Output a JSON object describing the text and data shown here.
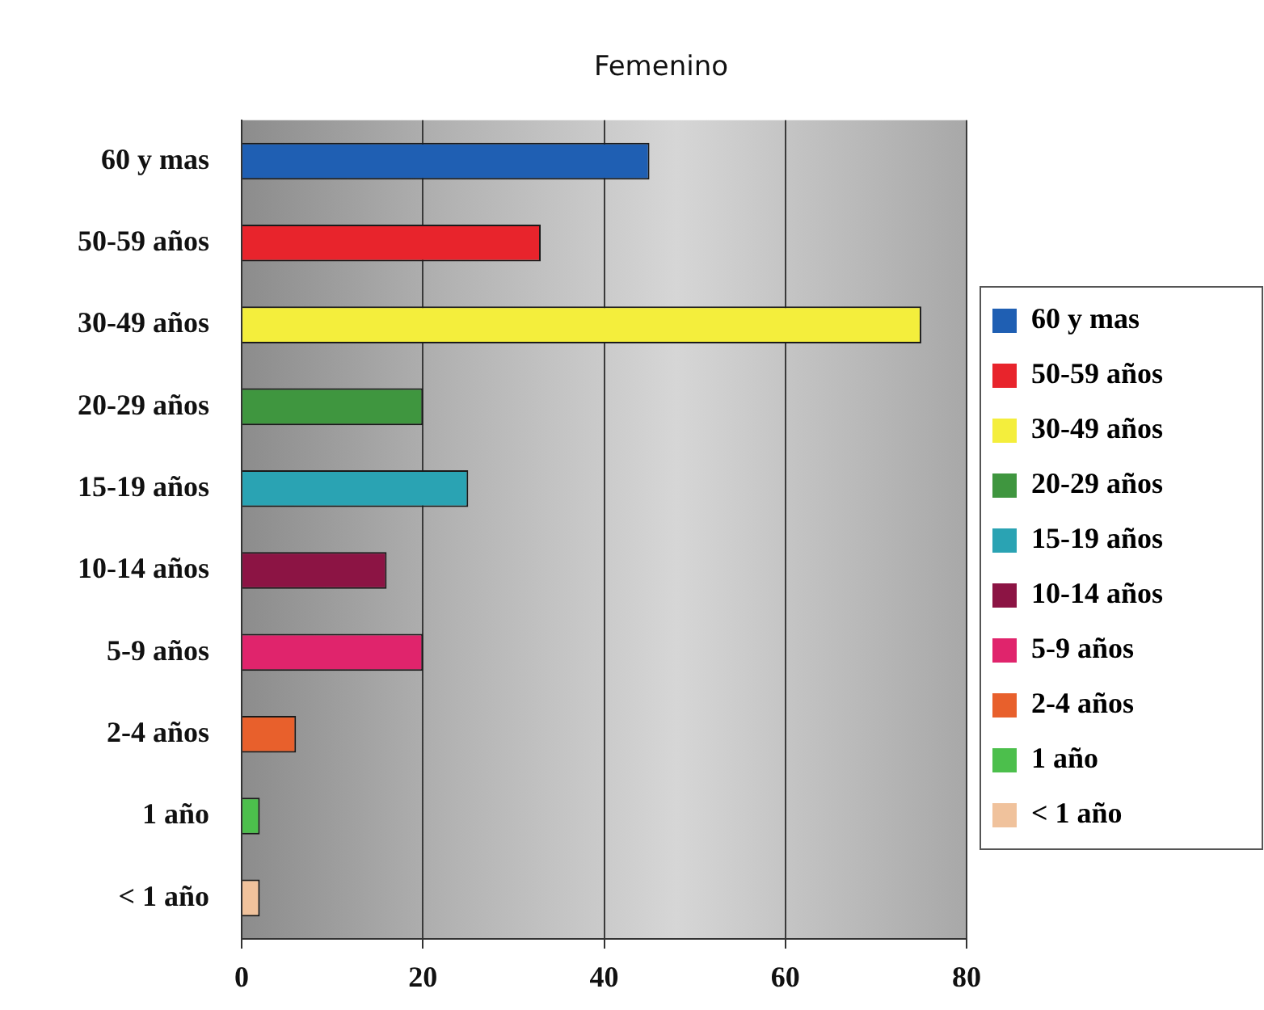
{
  "chart_data": {
    "type": "bar",
    "title": "Femenino",
    "orientation": "horizontal",
    "categories": [
      "60 y mas",
      "50-59 años",
      "30-49 años",
      "20-29 años",
      "15-19 años",
      "10-14 años",
      "5-9 años",
      "2-4 años",
      "1 año",
      "< 1 año"
    ],
    "series": [
      {
        "name": "60 y mas",
        "color": "#1f5fb3",
        "values": [
          45,
          null,
          null,
          null,
          null,
          null,
          null,
          null,
          null,
          null
        ]
      },
      {
        "name": "50-59 años",
        "color": "#e8242c",
        "values": [
          null,
          33,
          null,
          null,
          null,
          null,
          null,
          null,
          null,
          null
        ]
      },
      {
        "name": "30-49 años",
        "color": "#f4ee3c",
        "values": [
          null,
          null,
          75,
          null,
          null,
          null,
          null,
          null,
          null,
          null
        ]
      },
      {
        "name": "20-29 años",
        "color": "#3f963f",
        "values": [
          null,
          null,
          null,
          20,
          null,
          null,
          null,
          null,
          null,
          null
        ]
      },
      {
        "name": "15-19 años",
        "color": "#2aa3b3",
        "values": [
          null,
          null,
          null,
          null,
          25,
          null,
          null,
          null,
          null,
          null
        ]
      },
      {
        "name": "10-14 años",
        "color": "#8c1444",
        "values": [
          null,
          null,
          null,
          null,
          null,
          16,
          null,
          null,
          null,
          null
        ]
      },
      {
        "name": "5-9 años",
        "color": "#e0246c",
        "values": [
          null,
          null,
          null,
          null,
          null,
          null,
          20,
          null,
          null,
          null
        ]
      },
      {
        "name": "2-4 años",
        "color": "#e8602c",
        "values": [
          null,
          null,
          null,
          null,
          null,
          null,
          null,
          6,
          null,
          null
        ]
      },
      {
        "name": "1 año",
        "color": "#4cbf4c",
        "values": [
          null,
          null,
          null,
          null,
          null,
          null,
          null,
          null,
          2,
          null
        ]
      },
      {
        "name": "< 1 año",
        "color": "#f0c29c",
        "values": [
          null,
          null,
          null,
          null,
          null,
          null,
          null,
          null,
          null,
          2
        ]
      }
    ],
    "xlim": [
      0,
      80
    ],
    "xticks": [
      0,
      20,
      40,
      60,
      80
    ],
    "grid": "x",
    "legend": "right"
  }
}
